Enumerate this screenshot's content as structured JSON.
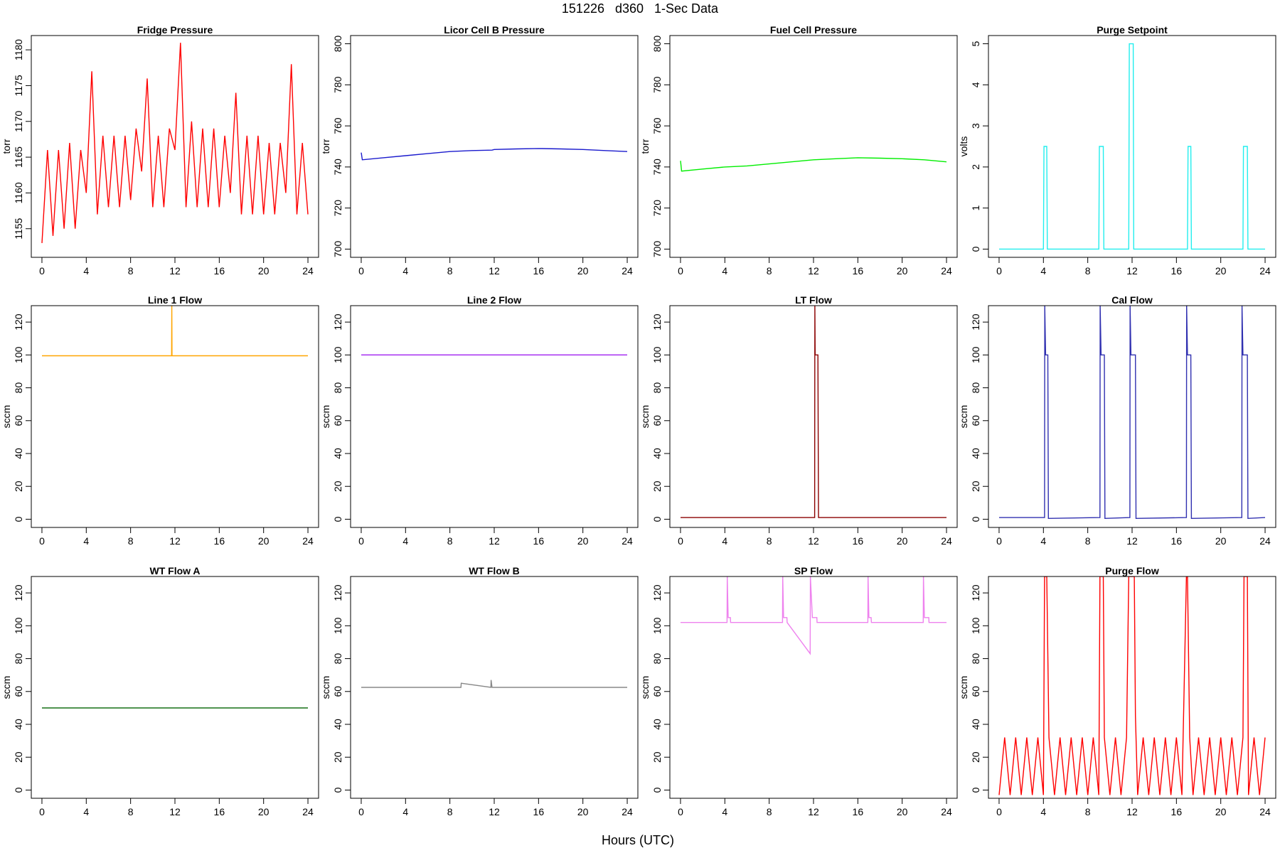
{
  "title": "151226   d360   1-Sec Data",
  "xlabel": "Hours (UTC)",
  "chart_data": [
    {
      "type": "line",
      "title": "Fridge Pressure",
      "ylabel": "torr",
      "color": "#ff0000",
      "x": [
        0,
        0.5,
        1,
        1.5,
        2,
        2.5,
        3,
        3.5,
        4,
        4.5,
        5,
        5.5,
        6,
        6.5,
        7,
        7.5,
        8,
        8.5,
        9,
        9.5,
        10,
        10.5,
        11,
        11.5,
        12,
        12.5,
        13,
        13.5,
        14,
        14.5,
        15,
        15.5,
        16,
        16.5,
        17,
        17.5,
        18,
        18.5,
        19,
        19.5,
        20,
        20.5,
        21,
        21.5,
        22,
        22.5,
        23,
        23.5,
        24
      ],
      "values": [
        1153,
        1166,
        1154,
        1166,
        1155,
        1167,
        1155,
        1166,
        1160,
        1177,
        1157,
        1168,
        1158,
        1168,
        1158,
        1168,
        1159,
        1169,
        1163,
        1176,
        1158,
        1168,
        1158,
        1169,
        1166,
        1181,
        1158,
        1170,
        1158,
        1169,
        1158,
        1169,
        1158,
        1168,
        1160,
        1174,
        1157,
        1168,
        1157,
        1168,
        1157,
        1167,
        1157,
        1167,
        1160,
        1178,
        1157,
        1167,
        1157
      ],
      "xlim": [
        -0.96,
        24.96
      ],
      "ylim": [
        1151,
        1182
      ],
      "xticks": [
        0,
        4,
        8,
        12,
        16,
        20,
        24
      ],
      "yticks": [
        1155,
        1160,
        1165,
        1170,
        1175,
        1180
      ]
    },
    {
      "type": "line",
      "title": "Licor Cell B Pressure",
      "ylabel": "torr",
      "color": "#1a1acd",
      "x": [
        0,
        0.1,
        2,
        4,
        6,
        8,
        10,
        11.8,
        12,
        14,
        16,
        18,
        20,
        22,
        24
      ],
      "values": [
        747,
        743.5,
        744.5,
        745.5,
        746.5,
        747.5,
        748,
        748.2,
        748.5,
        748.8,
        749,
        748.8,
        748.5,
        748,
        747.5
      ],
      "xlim": [
        -0.96,
        24.96
      ],
      "ylim": [
        696,
        804
      ],
      "xticks": [
        0,
        4,
        8,
        12,
        16,
        20,
        24
      ],
      "yticks": [
        700,
        720,
        740,
        760,
        780,
        800
      ]
    },
    {
      "type": "line",
      "title": "Fuel Cell Pressure",
      "ylabel": "torr",
      "color": "#00ee00",
      "x": [
        0,
        0.1,
        2,
        4,
        6,
        8,
        10,
        12,
        14,
        16,
        18,
        20,
        22,
        24
      ],
      "values": [
        743,
        738,
        739,
        740,
        740.5,
        741.5,
        742.5,
        743.5,
        744,
        744.5,
        744.3,
        744,
        743.5,
        742.5
      ],
      "xlim": [
        -0.96,
        24.96
      ],
      "ylim": [
        696,
        804
      ],
      "xticks": [
        0,
        4,
        8,
        12,
        16,
        20,
        24
      ],
      "yticks": [
        700,
        720,
        740,
        760,
        780,
        800
      ]
    },
    {
      "type": "line",
      "title": "Purge Setpoint",
      "ylabel": "volts",
      "color": "#22eeee",
      "x": [
        0,
        4,
        4.05,
        4.3,
        4.35,
        9,
        9.05,
        9.4,
        9.45,
        11.7,
        11.75,
        12.1,
        12.15,
        17,
        17.05,
        17.3,
        17.35,
        22,
        22.05,
        22.4,
        22.45,
        24
      ],
      "values": [
        0,
        0,
        2.5,
        2.5,
        0,
        0,
        2.5,
        2.5,
        0,
        0,
        5,
        5,
        0,
        0,
        2.5,
        2.5,
        0,
        0,
        2.5,
        2.5,
        0,
        0
      ],
      "xlim": [
        -0.96,
        24.96
      ],
      "ylim": [
        -0.2,
        5.2
      ],
      "xticks": [
        0,
        4,
        8,
        12,
        16,
        20,
        24
      ],
      "yticks": [
        0,
        1,
        2,
        3,
        4,
        5
      ]
    },
    {
      "type": "line",
      "title": "Line 1 Flow",
      "ylabel": "sccm",
      "color": "#ffa500",
      "x": [
        0,
        11.7,
        11.72,
        11.74,
        24
      ],
      "values": [
        99.5,
        99.5,
        130,
        99.5,
        99.5
      ],
      "xlim": [
        -0.96,
        24.96
      ],
      "ylim": [
        -5,
        130
      ],
      "xticks": [
        0,
        4,
        8,
        12,
        16,
        20,
        24
      ],
      "yticks": [
        0,
        20,
        40,
        60,
        80,
        100,
        120
      ]
    },
    {
      "type": "line",
      "title": "Line 2 Flow",
      "ylabel": "sccm",
      "color": "#a020f0",
      "x": [
        0,
        24
      ],
      "values": [
        100,
        100
      ],
      "xlim": [
        -0.96,
        24.96
      ],
      "ylim": [
        -5,
        130
      ],
      "xticks": [
        0,
        4,
        8,
        12,
        16,
        20,
        24
      ],
      "yticks": [
        0,
        20,
        40,
        60,
        80,
        100,
        120
      ]
    },
    {
      "type": "line",
      "title": "LT Flow",
      "ylabel": "sccm",
      "color": "#8b0000",
      "x": [
        0,
        12.1,
        12.12,
        12.15,
        12.4,
        12.45,
        24
      ],
      "values": [
        1,
        1,
        130,
        100,
        100,
        1,
        1
      ],
      "xlim": [
        -0.96,
        24.96
      ],
      "ylim": [
        -5,
        130
      ],
      "xticks": [
        0,
        4,
        8,
        12,
        16,
        20,
        24
      ],
      "yticks": [
        0,
        20,
        40,
        60,
        80,
        100,
        120
      ]
    },
    {
      "type": "line",
      "title": "Cal Flow",
      "ylabel": "sccm",
      "color": "#3030b0",
      "x": [
        0,
        4.1,
        4.12,
        4.2,
        4.4,
        4.45,
        9.1,
        9.12,
        9.2,
        9.5,
        9.55,
        11.8,
        11.82,
        11.9,
        12.3,
        12.35,
        16.9,
        16.92,
        17,
        17.3,
        17.35,
        21.9,
        21.92,
        22,
        22.4,
        22.45,
        24
      ],
      "values": [
        1,
        1,
        130,
        100,
        100,
        0.5,
        1,
        130,
        100,
        100,
        0.5,
        1,
        130,
        100,
        100,
        0.5,
        1,
        130,
        100,
        100,
        0.5,
        1,
        130,
        100,
        100,
        0.5,
        1
      ],
      "xlim": [
        -0.96,
        24.96
      ],
      "ylim": [
        -5,
        130
      ],
      "xticks": [
        0,
        4,
        8,
        12,
        16,
        20,
        24
      ],
      "yticks": [
        0,
        20,
        40,
        60,
        80,
        100,
        120
      ]
    },
    {
      "type": "line",
      "title": "WT Flow A",
      "ylabel": "sccm",
      "color": "#006400",
      "x": [
        0,
        24
      ],
      "values": [
        50,
        50
      ],
      "xlim": [
        -0.96,
        24.96
      ],
      "ylim": [
        -5,
        130
      ],
      "xticks": [
        0,
        4,
        8,
        12,
        16,
        20,
        24
      ],
      "yticks": [
        0,
        20,
        40,
        60,
        80,
        100,
        120
      ]
    },
    {
      "type": "line",
      "title": "WT Flow B",
      "ylabel": "sccm",
      "color": "#888888",
      "x": [
        0,
        9,
        9.02,
        11.7,
        11.72,
        11.8,
        24
      ],
      "values": [
        62.5,
        62.5,
        65,
        62.5,
        67,
        62.5,
        62.5
      ],
      "xlim": [
        -0.96,
        24.96
      ],
      "ylim": [
        -5,
        130
      ],
      "xticks": [
        0,
        4,
        8,
        12,
        16,
        20,
        24
      ],
      "yticks": [
        0,
        20,
        40,
        60,
        80,
        100,
        120
      ]
    },
    {
      "type": "line",
      "title": "SP Flow",
      "ylabel": "sccm",
      "color": "#ee82ee",
      "x": [
        0,
        4.2,
        4.22,
        4.3,
        4.5,
        4.52,
        9.2,
        9.22,
        9.3,
        9.6,
        9.62,
        11.7,
        11.72,
        11.9,
        12.3,
        12.32,
        16.9,
        16.92,
        17,
        17.2,
        17.22,
        21.9,
        21.92,
        22,
        22.4,
        22.42,
        24
      ],
      "values": [
        102,
        102,
        130,
        105,
        105,
        102,
        102,
        130,
        105,
        105,
        102,
        83,
        130,
        105,
        105,
        102,
        102,
        130,
        105,
        105,
        102,
        102,
        130,
        105,
        105,
        102,
        102
      ],
      "xlim": [
        -0.96,
        24.96
      ],
      "ylim": [
        -5,
        130
      ],
      "xticks": [
        0,
        4,
        8,
        12,
        16,
        20,
        24
      ],
      "yticks": [
        0,
        20,
        40,
        60,
        80,
        100,
        120
      ]
    },
    {
      "type": "line",
      "title": "Purge Flow",
      "ylabel": "sccm",
      "color": "#ff0000",
      "x": [
        0,
        0.5,
        1,
        1.5,
        2,
        2.5,
        3,
        3.5,
        4,
        4.1,
        4.3,
        4.5,
        5,
        5.5,
        6,
        6.5,
        7,
        7.5,
        8,
        8.5,
        9,
        9.1,
        9.4,
        9.5,
        10,
        10.5,
        11,
        11.5,
        11.7,
        11.8,
        12.2,
        12.3,
        12.5,
        13,
        13.5,
        14,
        14.5,
        15,
        15.5,
        16,
        16.5,
        16.9,
        17,
        17.2,
        17.5,
        18,
        18.5,
        19,
        19.5,
        20,
        20.5,
        21,
        21.5,
        22,
        22.1,
        22.4,
        22.5,
        23,
        23.5,
        24
      ],
      "values": [
        -3,
        32,
        -3,
        32,
        -3,
        32,
        -3,
        32,
        -3,
        130,
        130,
        32,
        -3,
        32,
        -3,
        32,
        -3,
        32,
        -3,
        32,
        -3,
        130,
        130,
        32,
        -3,
        32,
        -3,
        32,
        130,
        130,
        130,
        45,
        -3,
        32,
        -3,
        32,
        -3,
        32,
        -3,
        32,
        -3,
        130,
        130,
        32,
        -3,
        32,
        -3,
        32,
        -3,
        32,
        -3,
        32,
        -3,
        32,
        130,
        130,
        -3,
        32,
        -3,
        32
      ],
      "xlim": [
        -0.96,
        24.96
      ],
      "ylim": [
        -5,
        130
      ],
      "xticks": [
        0,
        4,
        8,
        12,
        16,
        20,
        24
      ],
      "yticks": [
        0,
        20,
        40,
        60,
        80,
        100,
        120
      ]
    }
  ]
}
